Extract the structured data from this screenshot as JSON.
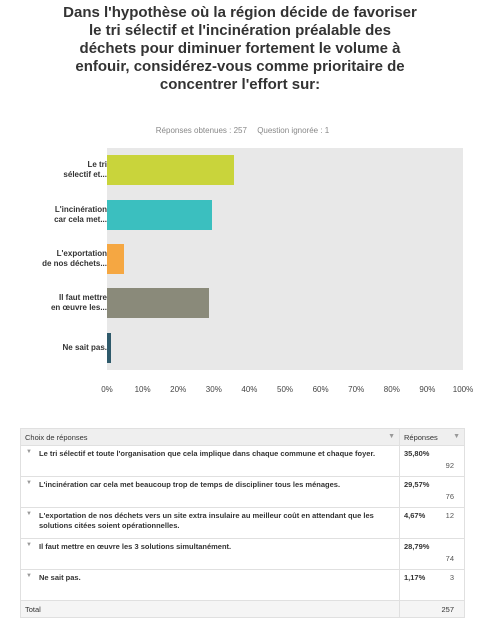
{
  "question": {
    "title": "Dans l'hypothèse où la région décide de favoriser le tri sélectif et l'incinération préalable des déchets pour diminuer fortement le volume à enfouir, considérez-vous comme prioritaire de concentrer l'effort sur:",
    "answered": "Réponses obtenues : 257",
    "skipped": "Question ignorée : 1"
  },
  "chart_data": {
    "type": "bar",
    "orientation": "horizontal",
    "categories": [
      "Le tri sélectif et...",
      "L'incinération car cela met...",
      "L'exportation de nos déchets...",
      "Il faut mettre en œuvre les...",
      "Ne sait pas."
    ],
    "values": [
      35.8,
      29.57,
      4.67,
      28.79,
      1.17
    ],
    "colors": [
      "#c9d43b",
      "#3bbfbf",
      "#f5a742",
      "#8a8a7a",
      "#2f5a6b"
    ],
    "xlim": [
      0,
      100
    ],
    "xticks": [
      "0%",
      "10%",
      "20%",
      "30%",
      "40%",
      "50%",
      "60%",
      "70%",
      "80%",
      "90%",
      "100%"
    ],
    "grid": false
  },
  "table": {
    "header_choice": "Choix de réponses",
    "header_responses": "Réponses",
    "rows": [
      {
        "answer": "Le tri sélectif et toute l'organisation que cela implique dans chaque commune et chaque foyer.",
        "percent": "35,80%",
        "count": "92"
      },
      {
        "answer": "L'incinération car cela met beaucoup trop de temps de discipliner tous les ménages.",
        "percent": "29,57%",
        "count": "76"
      },
      {
        "answer": "L'exportation de nos déchets vers un site extra insulaire au meilleur coût en attendant que les solutions citées soient opérationnelles.",
        "percent": "4,67%",
        "count": "12"
      },
      {
        "answer": "Il faut mettre en œuvre les 3 solutions simultanément.",
        "percent": "28,79%",
        "count": "74"
      },
      {
        "answer": "Ne sait pas.",
        "percent": "1,17%",
        "count": "3"
      }
    ],
    "total_label": "Total",
    "total_value": "257"
  }
}
